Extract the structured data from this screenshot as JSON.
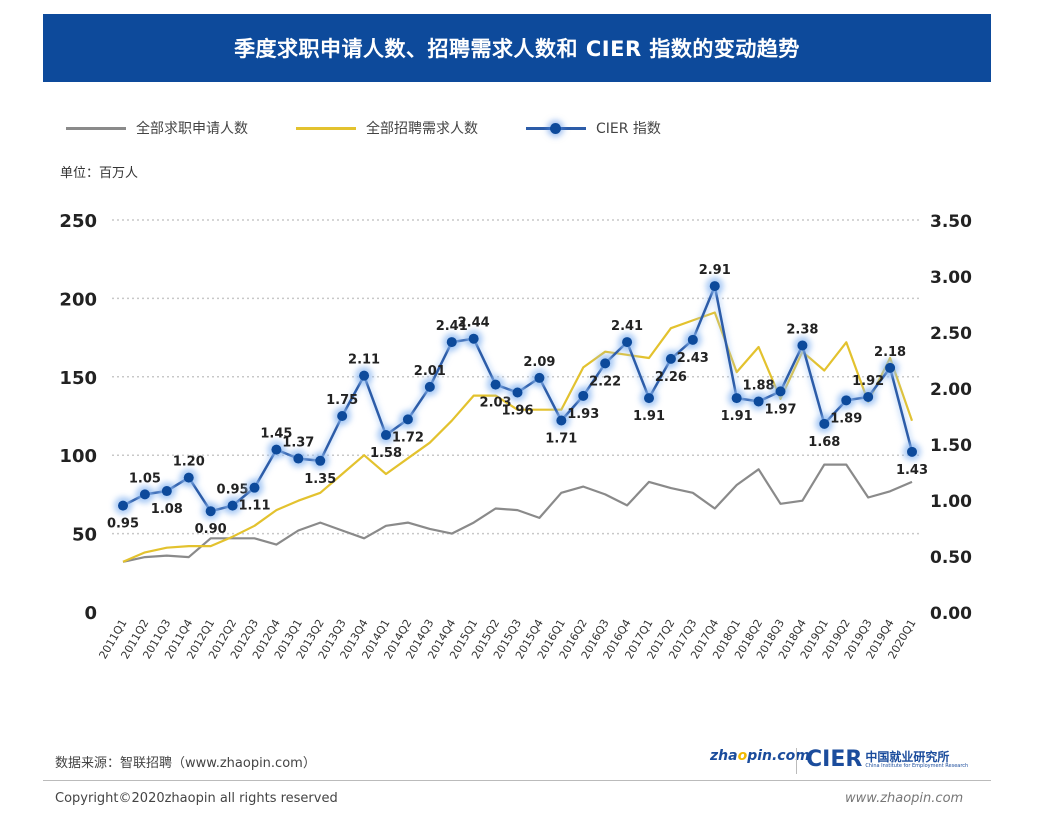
{
  "header": {
    "title": "季度求职申请人数、招聘需求人数和 CIER 指数的变动趋势"
  },
  "unit_label": "单位：百万人",
  "footer": {
    "source": "数据来源：智联招聘（www.zhaopin.com）",
    "copyright": "Copyright©2020zhaopin all rights reserved",
    "url": "www.zhaopin.com",
    "logo_zhaopin": "zhaopin.com 智联招聘",
    "logo_cier": "CIER",
    "logo_cier_cn": "中国就业研究所",
    "logo_cier_en": "China Institute for Employment Research"
  },
  "chart_data": {
    "type": "line",
    "title": "季度求职申请人数、招聘需求人数和 CIER 指数的变动趋势",
    "ylabel": "单位：百万人",
    "ylim": [
      0,
      250
    ],
    "y2lim": [
      0,
      3.5
    ],
    "yticks": [
      "0",
      "50",
      "100",
      "150",
      "200",
      "250"
    ],
    "y2ticks": [
      "0.00",
      "0.50",
      "1.00",
      "1.50",
      "2.00",
      "2.50",
      "3.00",
      "3.50"
    ],
    "grid": true,
    "legend_position": "top-left",
    "categories": [
      "2011Q1",
      "2011Q2",
      "2011Q3",
      "2011Q4",
      "2012Q1",
      "2012Q2",
      "2012Q3",
      "2012Q4",
      "2013Q1",
      "2013Q2",
      "2013Q3",
      "2013Q4",
      "2014Q1",
      "2014Q2",
      "2014Q3",
      "2014Q4",
      "2015Q1",
      "2015Q2",
      "2015Q3",
      "2015Q4",
      "2016Q1",
      "2016Q2",
      "2016Q3",
      "2016Q4",
      "2017Q1",
      "2017Q2",
      "2017Q3",
      "2017Q4",
      "2018Q1",
      "2018Q2",
      "2018Q3",
      "2018Q4",
      "2019Q1",
      "2019Q2",
      "2019Q3",
      "2019Q4",
      "2020Q1"
    ],
    "series": [
      {
        "name": "全部求职申请人数",
        "axis": "left",
        "color": "#8a8a8a",
        "values": [
          32,
          35,
          36,
          35,
          47,
          47,
          47,
          43,
          52,
          57,
          52,
          47,
          55,
          57,
          53,
          50,
          57,
          66,
          65,
          60,
          76,
          80,
          75,
          68,
          83,
          79,
          76,
          66,
          81,
          91,
          69,
          71,
          94,
          94,
          73,
          77,
          83
        ]
      },
      {
        "name": "全部招聘需求人数",
        "axis": "left",
        "color": "#e3c22e",
        "values": [
          32,
          38,
          41,
          42,
          42,
          48,
          55,
          65,
          71,
          76,
          88,
          100,
          88,
          98,
          108,
          122,
          138,
          138,
          129,
          129,
          129,
          156,
          166,
          164,
          162,
          181,
          186,
          191,
          153,
          169,
          136,
          166,
          154,
          172,
          134,
          162,
          122
        ]
      },
      {
        "name": "CIER 指数",
        "axis": "right",
        "color": "#2c5ca8",
        "marker": "#0d4a9b",
        "values": [
          0.95,
          1.05,
          1.08,
          1.2,
          0.9,
          0.95,
          1.11,
          1.45,
          1.37,
          1.35,
          1.75,
          2.11,
          1.58,
          1.72,
          2.01,
          2.41,
          2.44,
          2.03,
          1.96,
          2.09,
          1.71,
          1.93,
          2.22,
          2.41,
          1.91,
          2.26,
          2.43,
          2.91,
          1.91,
          1.88,
          1.97,
          2.38,
          1.68,
          1.89,
          1.92,
          2.18,
          1.43
        ],
        "labels": [
          "0.95",
          "1.05",
          "1.08",
          "1.20",
          "0.90",
          "0.95",
          "1.11",
          "1.45",
          "1.37",
          "1.35",
          "1.75",
          "2.11",
          "1.58",
          "1.72",
          "2.01",
          "2.41",
          "2.44",
          "2.03",
          "1.96",
          "2.09",
          "1.71",
          "1.93",
          "2.22",
          "2.41",
          "1.91",
          "2.26",
          "2.43",
          "2.91",
          "1.91",
          "1.88",
          "1.97",
          "2.38",
          "1.68",
          "1.89",
          "1.92",
          "2.18",
          "1.43"
        ]
      }
    ]
  }
}
